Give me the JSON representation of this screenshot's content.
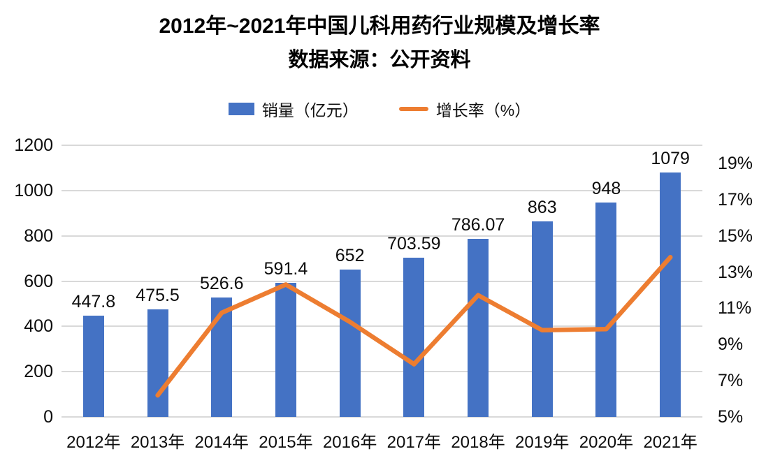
{
  "header": {
    "title": "2012年~2021年中国儿科用药行业规模及增长率",
    "subtitle": "数据来源：公开资料"
  },
  "legend": {
    "sales_label": "销量（亿元）",
    "growth_label": "增长率（%）"
  },
  "colors": {
    "bar": "#4472C4",
    "line": "#ED7D31",
    "grid": "#D9D9D9",
    "text": "#0D0D0D"
  },
  "chart_data": {
    "type": "bar+line",
    "title": "2012年~2021年中国儿科用药行业规模及增长率",
    "subtitle": "数据来源：公开资料",
    "categories": [
      "2012年",
      "2013年",
      "2014年",
      "2015年",
      "2016年",
      "2017年",
      "2018年",
      "2019年",
      "2020年",
      "2021年"
    ],
    "series": [
      {
        "name": "销量（亿元）",
        "type": "bar",
        "axis": "left",
        "color": "#4472C4",
        "values": [
          447.8,
          475.5,
          526.6,
          591.4,
          652,
          703.59,
          786.07,
          863,
          948,
          1079
        ],
        "labels": [
          "447.8",
          "475.5",
          "526.6",
          "591.4",
          "652",
          "703.59",
          "786.07",
          "863",
          "948",
          "1079"
        ]
      },
      {
        "name": "增长率（%）",
        "type": "line",
        "axis": "right",
        "color": "#ED7D31",
        "values": [
          null,
          6.19,
          10.75,
          12.31,
          10.25,
          7.91,
          11.72,
          9.79,
          9.85,
          13.82
        ]
      }
    ],
    "left_axis": {
      "min": 0,
      "max": 1200,
      "step": 200,
      "tick_values": [
        0,
        200,
        400,
        600,
        800,
        1000,
        1200
      ],
      "tick_labels": [
        "0",
        "200",
        "400",
        "600",
        "800",
        "1000",
        "1200"
      ]
    },
    "right_axis": {
      "min": 5,
      "max": 20,
      "step": 2,
      "tick_values": [
        5,
        7,
        9,
        11,
        13,
        15,
        17,
        19
      ],
      "tick_labels": [
        "5%",
        "7%",
        "9%",
        "11%",
        "13%",
        "15%",
        "17%",
        "19%"
      ]
    },
    "grid": true,
    "legend_position": "top"
  }
}
